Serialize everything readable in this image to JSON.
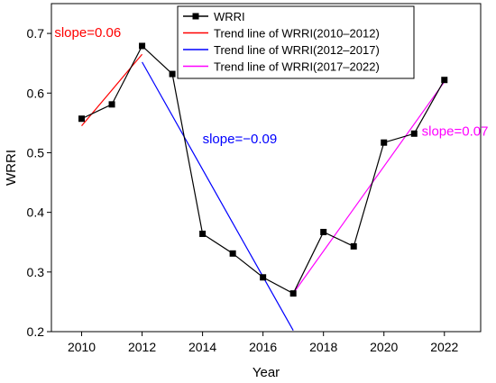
{
  "chart_data": {
    "type": "line",
    "xlabel": "Year",
    "ylabel": "WRRI",
    "xlim": [
      2009,
      2023.2
    ],
    "ylim": [
      0.2,
      0.75
    ],
    "xticks": [
      2010,
      2012,
      2014,
      2016,
      2018,
      2020,
      2022
    ],
    "yticks": [
      0.2,
      0.3,
      0.4,
      0.5,
      0.6,
      0.7
    ],
    "xtick_labels": [
      "2010",
      "2012",
      "2014",
      "2016",
      "2018",
      "2020",
      "2022"
    ],
    "ytick_labels": [
      "0.2",
      "0.3",
      "0.4",
      "0.5",
      "0.6",
      "0.7"
    ],
    "grid": false,
    "legend_position": "top-right",
    "series": [
      {
        "name": "WRRI",
        "color": "#000000",
        "marker": "square",
        "x": [
          2010,
          2011,
          2012,
          2013,
          2014,
          2015,
          2016,
          2017,
          2018,
          2019,
          2020,
          2021,
          2022
        ],
        "y": [
          0.557,
          0.581,
          0.679,
          0.632,
          0.364,
          0.331,
          0.291,
          0.264,
          0.367,
          0.343,
          0.517,
          0.532,
          0.622
        ]
      },
      {
        "name": "Trend line of WRRI(2010–2012)",
        "color": "#ff0000",
        "x": [
          2010,
          2012
        ],
        "y": [
          0.545,
          0.665
        ]
      },
      {
        "name": "Trend line of WRRI(2012–2017)",
        "color": "#0000ff",
        "x": [
          2012,
          2017
        ],
        "y": [
          0.652,
          0.202
        ]
      },
      {
        "name": "Trend line of WRRI(2017–2022)",
        "color": "#ff00ff",
        "x": [
          2017,
          2022
        ],
        "y": [
          0.264,
          0.619
        ]
      }
    ],
    "annotations": [
      {
        "text": "slope=0.06",
        "color": "#ff0000",
        "x": 2009.1,
        "y": 0.694
      },
      {
        "text": "slope=−0.09",
        "color": "#0000ff",
        "x": 2014.0,
        "y": 0.516
      },
      {
        "text": "slope=0.07",
        "color": "#ff00ff",
        "x": 2021.25,
        "y": 0.529
      }
    ]
  }
}
